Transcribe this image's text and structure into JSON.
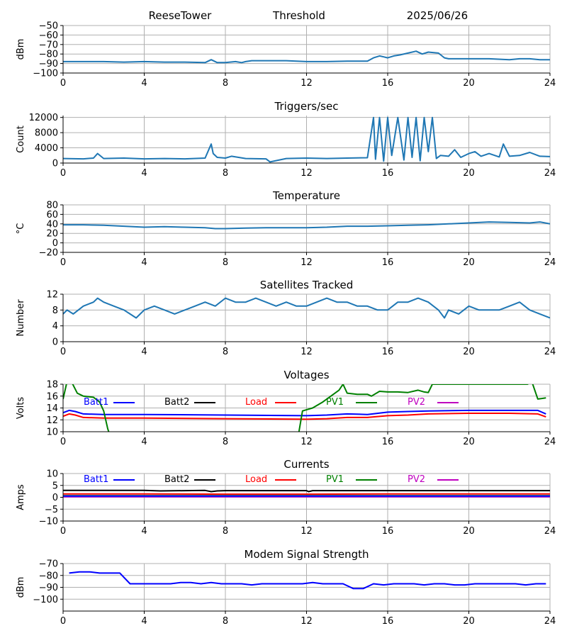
{
  "header": {
    "site": "ReeseTower",
    "mode": "Threshold",
    "date": "2025/06/26"
  },
  "colors": {
    "series_main": "#1f77b4",
    "grid": "#b0b0b0",
    "batt1": "#0000ff",
    "batt2": "#000000",
    "load": "#ff0000",
    "pv1": "#008000",
    "pv2": "#bf00bf",
    "modem": "#0000ff"
  },
  "chart_data": [
    {
      "id": "threshold",
      "type": "line",
      "title": "",
      "ylabel": "dBm",
      "ylim": [
        -100,
        -50
      ],
      "yticks": [
        -50,
        -60,
        -70,
        -80,
        -90,
        -100
      ],
      "xlim": [
        0,
        24
      ],
      "xticks": [
        0,
        4,
        8,
        12,
        16,
        20,
        24
      ],
      "x": [
        0,
        1,
        2,
        3,
        4,
        5,
        6,
        7,
        7.3,
        7.6,
        8,
        8.5,
        8.8,
        9,
        9.3,
        10,
        11,
        12,
        13,
        14,
        15,
        15.3,
        15.6,
        15.8,
        16,
        16.3,
        16.6,
        17,
        17.4,
        17.7,
        18,
        18.5,
        18.8,
        19,
        19.5,
        20,
        21,
        22,
        22.5,
        23,
        23.5,
        24
      ],
      "series": [
        {
          "name": "",
          "color": "series_main",
          "values": [
            -88,
            -88,
            -88,
            -88.5,
            -88,
            -88.5,
            -88.5,
            -89,
            -86,
            -89,
            -89,
            -88,
            -89,
            -88,
            -87,
            -87,
            -87,
            -88,
            -88,
            -87.5,
            -87.5,
            -84,
            -82,
            -83,
            -84,
            -82,
            -81,
            -79,
            -77,
            -80,
            -78,
            -79,
            -84,
            -85,
            -85,
            -85,
            -85,
            -86,
            -85,
            -85,
            -86,
            -86
          ]
        }
      ]
    },
    {
      "id": "triggers",
      "type": "line",
      "title": "Triggers/sec",
      "ylabel": "Count",
      "ylim": [
        0,
        12500
      ],
      "yticks": [
        0,
        4000,
        8000,
        12000
      ],
      "xlim": [
        0,
        24
      ],
      "xticks": [
        0,
        4,
        8,
        12,
        16,
        20,
        24
      ],
      "x": [
        0,
        1,
        1.5,
        1.7,
        2,
        3,
        4,
        5,
        6,
        7,
        7.3,
        7.4,
        7.6,
        8,
        8.3,
        9,
        10,
        10.2,
        11,
        12,
        13,
        14,
        15,
        15.3,
        15.4,
        15.6,
        15.8,
        16,
        16.2,
        16.5,
        16.8,
        17,
        17.2,
        17.4,
        17.6,
        17.8,
        18,
        18.2,
        18.4,
        18.6,
        19,
        19.3,
        19.6,
        20,
        20.3,
        20.6,
        21,
        21.5,
        21.7,
        22,
        22.5,
        23,
        23.5,
        24
      ],
      "series": [
        {
          "name": "",
          "color": "series_main",
          "values": [
            1200,
            1100,
            1300,
            2500,
            1200,
            1300,
            1100,
            1200,
            1100,
            1300,
            5000,
            2500,
            1500,
            1300,
            1800,
            1200,
            1100,
            300,
            1200,
            1300,
            1200,
            1300,
            1400,
            12000,
            1000,
            12000,
            500,
            12000,
            2000,
            12000,
            800,
            12000,
            1500,
            12000,
            600,
            12000,
            3000,
            12000,
            1200,
            2000,
            1800,
            3500,
            1500,
            2500,
            3000,
            1800,
            2500,
            1600,
            5000,
            1800,
            2000,
            2800,
            1800,
            1700
          ]
        }
      ]
    },
    {
      "id": "temperature",
      "type": "line",
      "title": "Temperature",
      "ylabel": "°C",
      "ylim": [
        -20,
        80
      ],
      "yticks": [
        -20,
        0,
        20,
        40,
        60,
        80
      ],
      "xlim": [
        0,
        24
      ],
      "xticks": [
        0,
        4,
        8,
        12,
        16,
        20,
        24
      ],
      "x": [
        0,
        1,
        2,
        3,
        4,
        5,
        6,
        7,
        7.5,
        8,
        9,
        10,
        11,
        12,
        13,
        14,
        15,
        16,
        17,
        18,
        19,
        20,
        21,
        22,
        23,
        23.5,
        24
      ],
      "series": [
        {
          "name": "",
          "color": "series_main",
          "values": [
            38,
            38,
            37,
            35,
            33,
            34,
            33,
            32,
            30,
            30,
            31,
            32,
            32,
            32,
            33,
            35,
            35,
            36,
            37,
            38,
            40,
            42,
            44,
            43,
            42,
            44,
            40
          ]
        }
      ]
    },
    {
      "id": "satellites",
      "type": "line",
      "title": "Satellites Tracked",
      "ylabel": "Number",
      "ylim": [
        0,
        12
      ],
      "yticks": [
        0,
        4,
        8,
        12
      ],
      "xlim": [
        0,
        24
      ],
      "xticks": [
        0,
        4,
        8,
        12,
        16,
        20,
        24
      ],
      "x": [
        0,
        0.2,
        0.5,
        1,
        1.5,
        1.7,
        2,
        2.5,
        3,
        3.3,
        3.6,
        3.8,
        4,
        4.5,
        5,
        5.5,
        6,
        6.5,
        7,
        7.5,
        8,
        8.5,
        9,
        9.5,
        10,
        10.5,
        11,
        11.5,
        12,
        12.5,
        13,
        13.5,
        14,
        14.5,
        15,
        15.5,
        16,
        16.5,
        17,
        17.5,
        18,
        18.5,
        18.8,
        19,
        19.5,
        20,
        20.5,
        21,
        21.5,
        22,
        22.5,
        23,
        23.5,
        24
      ],
      "series": [
        {
          "name": "",
          "color": "series_main",
          "values": [
            7,
            8,
            7,
            9,
            10,
            11,
            10,
            9,
            8,
            7,
            6,
            7,
            8,
            9,
            8,
            7,
            8,
            9,
            10,
            9,
            11,
            10,
            10,
            11,
            10,
            9,
            10,
            9,
            9,
            10,
            11,
            10,
            10,
            9,
            9,
            8,
            8,
            10,
            10,
            11,
            10,
            8,
            6,
            8,
            7,
            9,
            8,
            8,
            8,
            9,
            10,
            8,
            7,
            6
          ]
        }
      ]
    },
    {
      "id": "voltages",
      "type": "line",
      "title": "Voltages",
      "ylabel": "Volts",
      "ylim": [
        10,
        18
      ],
      "yticks": [
        10,
        12,
        14,
        16,
        18
      ],
      "xlim": [
        0,
        24
      ],
      "xticks": [
        0,
        4,
        8,
        12,
        16,
        20,
        24
      ],
      "legend": [
        "Batt1",
        "Batt2",
        "Load",
        "PV1",
        "PV2"
      ],
      "series": [
        {
          "name": "Batt1",
          "color": "batt1",
          "x": [
            0,
            0.3,
            0.6,
            1,
            2,
            4,
            8,
            12,
            13,
            14,
            15,
            16,
            17,
            18,
            20,
            22,
            23.4,
            23.8
          ],
          "values": [
            13.2,
            13.6,
            13.4,
            13.0,
            12.9,
            12.9,
            12.8,
            12.7,
            12.8,
            13.0,
            12.9,
            13.3,
            13.4,
            13.5,
            13.6,
            13.6,
            13.6,
            13.0
          ]
        },
        {
          "name": "Load",
          "color": "load",
          "x": [
            0,
            0.3,
            0.6,
            1,
            2,
            4,
            8,
            12,
            13,
            14,
            15,
            16,
            17,
            18,
            20,
            22,
            23.4,
            23.8
          ],
          "values": [
            12.6,
            13.0,
            12.8,
            12.4,
            12.3,
            12.3,
            12.2,
            12.1,
            12.2,
            12.4,
            12.4,
            12.7,
            12.8,
            13.0,
            13.1,
            13.1,
            13.0,
            12.5
          ]
        },
        {
          "name": "PV1",
          "color": "pv1",
          "x": [
            0,
            0.2,
            0.4,
            0.7,
            1,
            1.5,
            1.8,
            2.0,
            2.2,
            2.3,
            11.6,
            11.8,
            12.3,
            12.8,
            13.2,
            13.6,
            13.8,
            14.0,
            14.5,
            15.0,
            15.2,
            15.6,
            16.0,
            16.5,
            17.0,
            17.5,
            17.8,
            18.0,
            18.2,
            22.9,
            23.1,
            23.4,
            23.8
          ],
          "values": [
            15.5,
            18.5,
            18.5,
            16.5,
            16.0,
            15.8,
            15.0,
            13.5,
            10.5,
            9.5,
            9.5,
            13.5,
            14.0,
            15.0,
            16.0,
            17.0,
            18.0,
            16.5,
            16.3,
            16.3,
            16.0,
            16.8,
            16.7,
            16.7,
            16.6,
            17.0,
            16.7,
            16.6,
            18.0,
            18.0,
            18.5,
            15.5,
            15.7
          ]
        }
      ]
    },
    {
      "id": "currents",
      "type": "line",
      "title": "Currents",
      "ylabel": "Amps",
      "ylim": [
        -10,
        10
      ],
      "yticks": [
        -10,
        -5,
        0,
        5,
        10
      ],
      "xlim": [
        0,
        24
      ],
      "xticks": [
        0,
        4,
        8,
        12,
        16,
        20,
        24
      ],
      "legend": [
        "Batt1",
        "Batt2",
        "Load",
        "PV1",
        "PV2"
      ],
      "series": [
        {
          "name": "Batt2",
          "color": "batt2",
          "x": [
            0,
            4,
            4.8,
            7,
            7.3,
            7.6,
            8,
            12,
            12.1,
            12.3,
            16,
            20,
            24
          ],
          "values": [
            2.9,
            2.9,
            2.7,
            2.9,
            2.4,
            2.7,
            2.8,
            2.8,
            2.4,
            2.8,
            2.8,
            2.8,
            2.8
          ]
        },
        {
          "name": "Load",
          "color": "load",
          "x": [
            0,
            4,
            8,
            12,
            16,
            20,
            24
          ],
          "values": [
            1.4,
            1.4,
            1.3,
            1.3,
            1.4,
            1.4,
            1.4
          ]
        },
        {
          "name": "PV1",
          "color": "pv1",
          "x": [
            0,
            24
          ],
          "values": [
            0.7,
            0.7
          ]
        },
        {
          "name": "PV2",
          "color": "pv2",
          "x": [
            0,
            24
          ],
          "values": [
            0.2,
            0.2
          ]
        },
        {
          "name": "Batt1",
          "color": "batt1",
          "x": [
            0,
            24
          ],
          "values": [
            0.5,
            0.5
          ]
        }
      ]
    },
    {
      "id": "modem",
      "type": "line",
      "title": "Modem Signal Strength",
      "ylabel": "dBm",
      "ylim": [
        -110,
        -70
      ],
      "yticks": [
        -70,
        -80,
        -90,
        -100
      ],
      "xlim": [
        0,
        24
      ],
      "xticks": [
        0,
        4,
        8,
        12,
        16,
        20,
        24
      ],
      "series": [
        {
          "name": "",
          "color": "modem",
          "x": [
            0.3,
            0.8,
            1.3,
            1.8,
            2.3,
            2.8,
            3.3,
            3.8,
            4.3,
            4.8,
            5.3,
            5.8,
            6.3,
            6.8,
            7.3,
            7.8,
            8.3,
            8.8,
            9.3,
            9.8,
            10.3,
            10.8,
            11.3,
            11.8,
            12.3,
            12.8,
            13.3,
            13.8,
            14.3,
            14.8,
            15.3,
            15.8,
            16.3,
            16.8,
            17.3,
            17.8,
            18.3,
            18.8,
            19.3,
            19.8,
            20.3,
            20.8,
            21.3,
            21.8,
            22.3,
            22.8,
            23.3,
            23.8
          ],
          "values": [
            -78,
            -77,
            -77,
            -78,
            -78,
            -78,
            -87,
            -87,
            -87,
            -87,
            -87,
            -86,
            -86,
            -87,
            -86,
            -87,
            -87,
            -87,
            -88,
            -87,
            -87,
            -87,
            -87,
            -87,
            -86,
            -87,
            -87,
            -87,
            -91,
            -91,
            -87,
            -88,
            -87,
            -87,
            -87,
            -88,
            -87,
            -87,
            -88,
            -88,
            -87,
            -87,
            -87,
            -87,
            -87,
            -88,
            -87,
            -87
          ]
        }
      ]
    }
  ]
}
